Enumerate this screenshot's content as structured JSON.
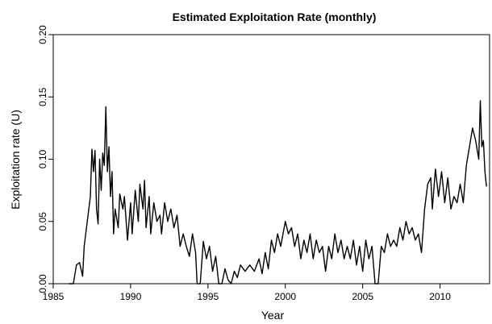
{
  "chart_data": {
    "type": "line",
    "title": "Estimated Exploitation Rate (monthly)",
    "x_label": "Year",
    "y_label": "Exploitation rate (U)",
    "x": [
      1986.0,
      1986.3,
      1986.5,
      1986.7,
      1986.9,
      1987.0,
      1987.2,
      1987.4,
      1987.5,
      1987.6,
      1987.7,
      1987.8,
      1987.9,
      1988.0,
      1988.1,
      1988.2,
      1988.3,
      1988.4,
      1988.5,
      1988.6,
      1988.7,
      1988.8,
      1988.9,
      1989.0,
      1989.2,
      1989.3,
      1989.5,
      1989.6,
      1989.8,
      1990.0,
      1990.1,
      1990.3,
      1990.5,
      1990.6,
      1990.8,
      1990.9,
      1991.0,
      1991.2,
      1991.3,
      1991.5,
      1991.7,
      1991.9,
      1992.0,
      1992.2,
      1992.4,
      1992.6,
      1992.8,
      1993.0,
      1993.2,
      1993.4,
      1993.6,
      1993.8,
      1994.0,
      1994.2,
      1994.3,
      1994.5,
      1994.7,
      1994.9,
      1995.1,
      1995.3,
      1995.5,
      1995.7,
      1995.9,
      1996.1,
      1996.3,
      1996.5,
      1996.7,
      1996.9,
      1997.1,
      1997.4,
      1997.7,
      1998.0,
      1998.3,
      1998.5,
      1998.7,
      1998.9,
      1999.1,
      1999.3,
      1999.5,
      1999.7,
      2000.0,
      2000.2,
      2000.4,
      2000.6,
      2000.8,
      2001.0,
      2001.2,
      2001.4,
      2001.6,
      2001.8,
      2002.0,
      2002.2,
      2002.4,
      2002.6,
      2002.8,
      2003.0,
      2003.2,
      2003.4,
      2003.6,
      2003.8,
      2004.0,
      2004.2,
      2004.4,
      2004.6,
      2004.8,
      2005.0,
      2005.2,
      2005.4,
      2005.6,
      2005.8,
      2006.0,
      2006.2,
      2006.4,
      2006.6,
      2006.8,
      2007.0,
      2007.2,
      2007.4,
      2007.6,
      2007.8,
      2008.0,
      2008.2,
      2008.4,
      2008.6,
      2008.8,
      2009.0,
      2009.2,
      2009.4,
      2009.5,
      2009.7,
      2009.9,
      2010.1,
      2010.3,
      2010.5,
      2010.7,
      2010.9,
      2011.1,
      2011.3,
      2011.5,
      2011.7,
      2011.9,
      2012.1,
      2012.3,
      2012.5,
      2012.6,
      2012.7,
      2012.8,
      2012.9,
      2013.0
    ],
    "values": [
      0.0,
      0.0,
      0.015,
      0.017,
      0.006,
      0.03,
      0.05,
      0.07,
      0.108,
      0.09,
      0.107,
      0.06,
      0.048,
      0.1,
      0.075,
      0.105,
      0.095,
      0.142,
      0.09,
      0.11,
      0.07,
      0.09,
      0.04,
      0.06,
      0.045,
      0.072,
      0.06,
      0.07,
      0.035,
      0.065,
      0.04,
      0.075,
      0.05,
      0.08,
      0.06,
      0.083,
      0.045,
      0.07,
      0.04,
      0.065,
      0.05,
      0.055,
      0.04,
      0.065,
      0.05,
      0.06,
      0.045,
      0.055,
      0.03,
      0.04,
      0.03,
      0.022,
      0.04,
      0.025,
      0.0,
      0.0,
      0.034,
      0.02,
      0.03,
      0.01,
      0.022,
      0.0,
      0.0,
      0.012,
      0.003,
      0.0,
      0.01,
      0.005,
      0.015,
      0.01,
      0.015,
      0.01,
      0.02,
      0.008,
      0.025,
      0.012,
      0.035,
      0.025,
      0.04,
      0.03,
      0.05,
      0.04,
      0.045,
      0.03,
      0.04,
      0.02,
      0.035,
      0.025,
      0.04,
      0.02,
      0.035,
      0.025,
      0.03,
      0.01,
      0.03,
      0.02,
      0.04,
      0.025,
      0.035,
      0.02,
      0.03,
      0.02,
      0.035,
      0.015,
      0.03,
      0.01,
      0.035,
      0.02,
      0.03,
      0.0,
      0.0,
      0.03,
      0.025,
      0.04,
      0.03,
      0.035,
      0.03,
      0.045,
      0.035,
      0.05,
      0.04,
      0.045,
      0.035,
      0.04,
      0.025,
      0.06,
      0.08,
      0.085,
      0.06,
      0.092,
      0.07,
      0.09,
      0.065,
      0.085,
      0.06,
      0.07,
      0.065,
      0.08,
      0.065,
      0.095,
      0.11,
      0.125,
      0.115,
      0.1,
      0.147,
      0.11,
      0.115,
      0.09,
      0.078
    ],
    "color": "#000000",
    "xlim": [
      1985,
      2013.2
    ],
    "xticks": [
      1985,
      1990,
      1995,
      2000,
      2005,
      2010
    ],
    "ylim": [
      0,
      0.2
    ],
    "yticks": [
      {
        "value": 0,
        "label": "0.00"
      },
      {
        "value": 0.05,
        "label": "0.05"
      },
      {
        "value": 0.1,
        "label": "0.10"
      },
      {
        "value": 0.15,
        "label": "0.15"
      },
      {
        "value": 0.2,
        "label": "0.20"
      }
    ],
    "grid": false
  }
}
